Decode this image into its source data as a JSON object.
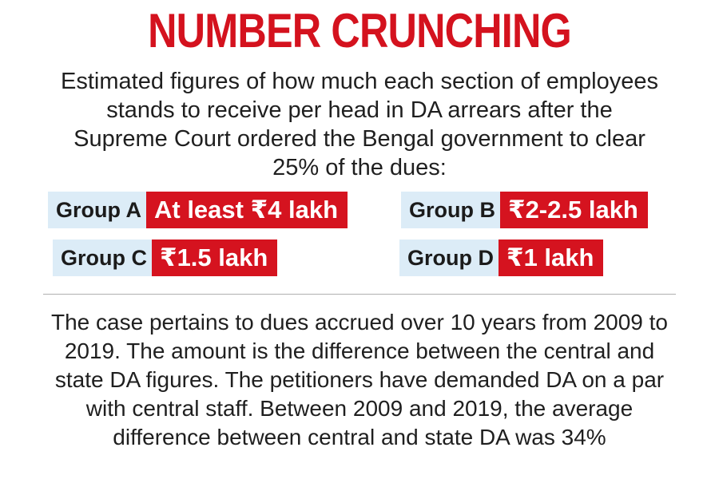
{
  "title": "NUMBER CRUNCHING",
  "intro": "Estimated figures of how much each section of employees stands to receive per head in DA arrears after the Supreme Court ordered the Bengal government to clear 25% of the dues:",
  "groups": [
    {
      "label": "Group A",
      "value": "At least ₹4 lakh"
    },
    {
      "label": "Group B",
      "value": "₹2-2.5 lakh"
    },
    {
      "label": "Group C",
      "value": "₹1.5 lakh"
    },
    {
      "label": "Group D",
      "value": "₹1 lakh"
    }
  ],
  "footnote": "The case pertains to dues accrued over 10 years from 2009 to 2019. The amount is the difference between the central and state DA figures. The petitioners have demanded DA on a par with central staff. Between 2009 and 2019, the average difference between central and state DA was 34%",
  "colors": {
    "title": "#d4121e",
    "value_bg": "#d5131f",
    "label_bg": "#dcecf7",
    "text": "#1f1f1f"
  }
}
